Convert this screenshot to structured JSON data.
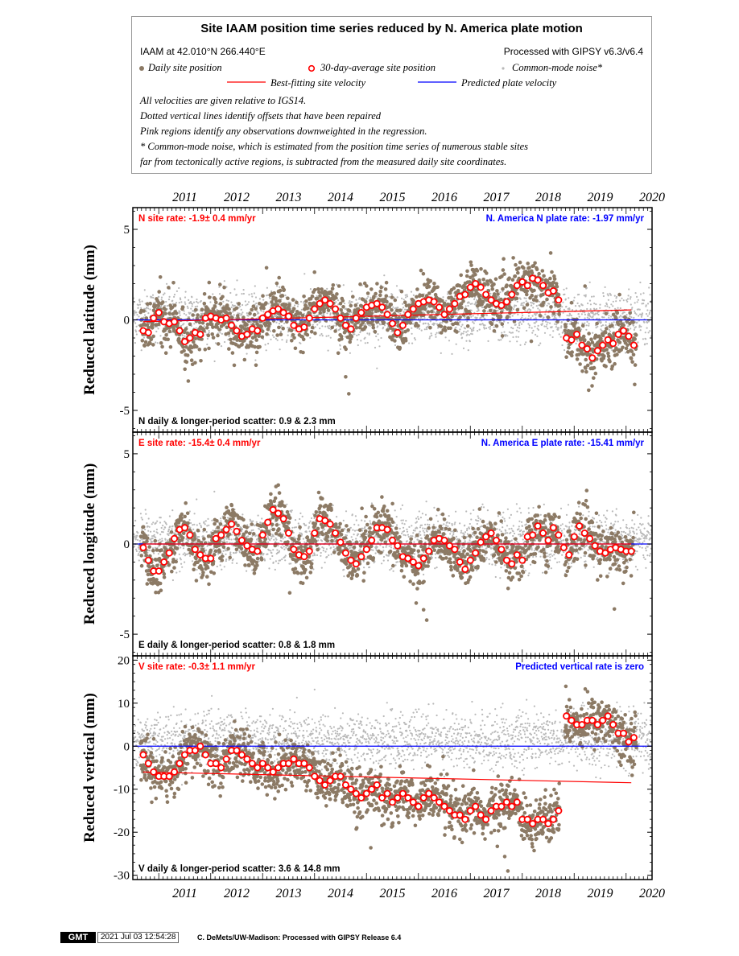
{
  "legend": {
    "title": "Site IAAM position time series reduced by N. America plate motion",
    "site_info": "IAAM at 42.010°N 266.440°E",
    "processing": "Processed with GIPSY v6.3/v6.4",
    "daily_label": "Daily site position",
    "avg_label": "30-day-average site position",
    "cm_label": "Common-mode noise*",
    "fit_label": "Best-fitting site velocity",
    "plate_label": "Predicted plate velocity",
    "notes": [
      "All velocities are given relative to IGS14.",
      "Dotted vertical lines identify offsets that have been repaired",
      "Pink regions identify any observations downweighted in the regression.",
      "* Common-mode noise, which is estimated from the position time series of numerous stable sites",
      "far from tectonically active regions, is subtracted from the measured daily site coordinates."
    ]
  },
  "colors": {
    "daily": "#8c7a65",
    "common_mode": "#b9b9b9",
    "fit": "#ff0000",
    "plate": "#0000ff",
    "avg_fill": "#ffffff",
    "avg_stroke": "#ff0000"
  },
  "chart_data": [
    {
      "type": "scatter",
      "component": "N",
      "ylabel": "Reduced latitude (mm)",
      "ylim": [
        -6.2,
        6.2
      ],
      "yticks": [
        -5,
        0,
        5
      ],
      "xlim": [
        2010.5,
        2020.5
      ],
      "years": [
        "2011",
        "2012",
        "2013",
        "2014",
        "2015",
        "2016",
        "2017",
        "2018",
        "2019",
        "2020"
      ],
      "site_rate": "N site rate:  -1.9± 0.4 mm/yr",
      "plate_rate": "N. America N plate rate: -1.97 mm/yr",
      "scatter_text": "N daily & longer-period scatter:   0.9 &   2.3 mm",
      "fit_line": {
        "x": [
          2010.7,
          2020.1
        ],
        "y": [
          -0.1,
          0.55
        ]
      },
      "plate_line_y": 0,
      "avg_series": {
        "x": [
          2010.7,
          2010.8,
          2010.9,
          2011.0,
          2011.1,
          2011.2,
          2011.3,
          2011.4,
          2011.5,
          2011.6,
          2011.7,
          2011.8,
          2011.9,
          2012.0,
          2012.1,
          2012.2,
          2012.3,
          2012.4,
          2012.5,
          2012.6,
          2012.7,
          2012.8,
          2012.9,
          2013.0,
          2013.1,
          2013.2,
          2013.3,
          2013.4,
          2013.5,
          2013.6,
          2013.7,
          2013.8,
          2013.9,
          2014.0,
          2014.1,
          2014.2,
          2014.3,
          2014.4,
          2014.5,
          2014.6,
          2014.7,
          2014.8,
          2014.9,
          2015.0,
          2015.1,
          2015.2,
          2015.3,
          2015.4,
          2015.5,
          2015.6,
          2015.7,
          2015.8,
          2015.9,
          2016.0,
          2016.1,
          2016.2,
          2016.3,
          2016.4,
          2016.5,
          2016.6,
          2016.7,
          2016.8,
          2016.9,
          2017.0,
          2017.1,
          2017.2,
          2017.3,
          2017.4,
          2017.5,
          2017.6,
          2017.7,
          2017.8,
          2017.9,
          2018.0,
          2018.1,
          2018.2,
          2018.3,
          2018.4,
          2018.5,
          2018.6,
          2018.7,
          2018.85,
          2018.95,
          2019.05,
          2019.15,
          2019.25,
          2019.35,
          2019.45,
          2019.55,
          2019.65,
          2019.75,
          2019.85,
          2019.95,
          2020.05,
          2020.15
        ],
        "y": [
          -0.6,
          -0.7,
          0.1,
          0.4,
          -0.1,
          -0.2,
          -0.1,
          -0.6,
          -1.2,
          -1.0,
          -0.7,
          -0.8,
          0.1,
          0.2,
          0.1,
          0.0,
          0.1,
          -0.3,
          -0.6,
          -0.9,
          -0.8,
          -0.5,
          -0.6,
          0.1,
          0.3,
          0.5,
          0.6,
          0.4,
          0.2,
          -0.3,
          -0.5,
          -0.4,
          0.1,
          0.6,
          0.9,
          1.1,
          0.9,
          0.6,
          0.1,
          -0.3,
          -0.5,
          0.1,
          0.4,
          0.7,
          0.8,
          0.9,
          0.7,
          0.3,
          -0.2,
          -0.7,
          -0.3,
          0.3,
          0.6,
          0.9,
          1.0,
          1.1,
          1.0,
          0.7,
          0.3,
          0.6,
          0.9,
          1.3,
          1.4,
          1.8,
          2.0,
          1.8,
          1.4,
          1.1,
          0.9,
          0.8,
          1.0,
          1.4,
          1.9,
          2.1,
          1.9,
          2.3,
          2.2,
          1.9,
          1.5,
          1.6,
          1.1,
          -1.0,
          -1.1,
          -0.8,
          -1.4,
          -1.6,
          -2.1,
          -1.7,
          -1.4,
          -1.1,
          -1.3,
          -0.8,
          -0.6,
          -0.9,
          -1.4
        ]
      }
    },
    {
      "type": "scatter",
      "component": "E",
      "ylabel": "Reduced longitude (mm)",
      "ylim": [
        -6.2,
        6.2
      ],
      "yticks": [
        -5,
        0,
        5
      ],
      "xlim": [
        2010.5,
        2020.5
      ],
      "years": [
        "2011",
        "2012",
        "2013",
        "2014",
        "2015",
        "2016",
        "2017",
        "2018",
        "2019",
        "2020"
      ],
      "site_rate": "E site rate:  -15.4± 0.4 mm/yr",
      "plate_rate": "N. America E plate rate: -15.41 mm/yr",
      "scatter_text": "E daily & longer-period scatter:   0.8 &   1.8 mm",
      "fit_line": {
        "x": [
          2010.7,
          2020.1
        ],
        "y": [
          0.0,
          0.0
        ]
      },
      "plate_line_y": 0,
      "avg_series": {
        "x": [
          2010.7,
          2010.8,
          2010.9,
          2011.0,
          2011.1,
          2011.2,
          2011.3,
          2011.4,
          2011.5,
          2011.6,
          2011.7,
          2011.8,
          2011.9,
          2012.0,
          2012.1,
          2012.2,
          2012.3,
          2012.4,
          2012.5,
          2012.6,
          2012.7,
          2012.8,
          2012.9,
          2013.0,
          2013.1,
          2013.2,
          2013.3,
          2013.4,
          2013.5,
          2013.6,
          2013.7,
          2013.8,
          2013.9,
          2014.0,
          2014.1,
          2014.2,
          2014.3,
          2014.4,
          2014.5,
          2014.6,
          2014.7,
          2014.8,
          2014.9,
          2015.0,
          2015.1,
          2015.2,
          2015.3,
          2015.4,
          2015.5,
          2015.6,
          2015.7,
          2015.8,
          2015.9,
          2016.0,
          2016.1,
          2016.2,
          2016.3,
          2016.4,
          2016.5,
          2016.6,
          2016.7,
          2016.8,
          2016.9,
          2017.0,
          2017.1,
          2017.2,
          2017.3,
          2017.4,
          2017.5,
          2017.6,
          2017.7,
          2017.8,
          2017.9,
          2018.0,
          2018.1,
          2018.2,
          2018.3,
          2018.4,
          2018.5,
          2018.6,
          2018.7,
          2018.8,
          2018.9,
          2019.0,
          2019.1,
          2019.2,
          2019.3,
          2019.4,
          2019.5,
          2019.6,
          2019.7,
          2019.8,
          2019.9,
          2020.0,
          2020.1
        ],
        "y": [
          -0.2,
          -0.9,
          -1.5,
          -1.5,
          -1.0,
          -0.5,
          0.3,
          0.8,
          0.9,
          0.5,
          -0.3,
          -0.6,
          -0.8,
          -0.8,
          0.3,
          0.5,
          0.8,
          1.1,
          0.7,
          0.2,
          -0.1,
          -0.3,
          -0.4,
          0.5,
          1.2,
          1.9,
          1.7,
          1.4,
          0.6,
          -0.3,
          -0.6,
          -0.7,
          -0.4,
          0.6,
          1.4,
          1.3,
          1.1,
          0.6,
          0.1,
          -0.5,
          -0.9,
          -1.1,
          -0.7,
          -0.3,
          0.2,
          0.9,
          0.9,
          0.8,
          0.2,
          -0.1,
          -0.7,
          -0.8,
          -1.0,
          -1.2,
          -0.8,
          -0.4,
          0.2,
          0.3,
          0.2,
          -0.1,
          -0.3,
          -1.0,
          -1.4,
          -0.9,
          -0.5,
          0.1,
          0.4,
          0.6,
          0.2,
          -0.3,
          -0.9,
          -1.1,
          -0.6,
          -0.9,
          0.4,
          0.5,
          1.0,
          0.6,
          0.2,
          0.9,
          0.5,
          -0.2,
          -0.6,
          0.4,
          1.0,
          0.6,
          0.3,
          -0.1,
          -0.4,
          -0.5,
          -0.3,
          -0.2,
          -0.3,
          -0.4,
          -0.4
        ]
      }
    },
    {
      "type": "scatter",
      "component": "V",
      "ylabel": "Reduced vertical (mm)",
      "ylim": [
        -31,
        21
      ],
      "yticks": [
        -30,
        -20,
        -10,
        0,
        10,
        20
      ],
      "xlim": [
        2010.5,
        2020.5
      ],
      "years": [
        "2011",
        "2012",
        "2013",
        "2014",
        "2015",
        "2016",
        "2017",
        "2018",
        "2019",
        "2020"
      ],
      "site_rate": "V site rate:  -0.3± 1.1 mm/yr",
      "plate_rate": "Predicted vertical rate is zero",
      "scatter_text": "V daily & longer-period scatter:   3.6 &  14.8 mm",
      "fit_line": {
        "x": [
          2010.7,
          2020.1
        ],
        "y": [
          -6.0,
          -8.5
        ]
      },
      "plate_line_y": 0,
      "avg_series": {
        "x": [
          2010.7,
          2010.8,
          2010.9,
          2011.0,
          2011.1,
          2011.2,
          2011.3,
          2011.4,
          2011.5,
          2011.6,
          2011.7,
          2011.8,
          2011.9,
          2012.0,
          2012.1,
          2012.2,
          2012.3,
          2012.4,
          2012.5,
          2012.6,
          2012.7,
          2012.8,
          2012.9,
          2013.0,
          2013.1,
          2013.2,
          2013.3,
          2013.4,
          2013.5,
          2013.6,
          2013.7,
          2013.8,
          2013.9,
          2014.0,
          2014.1,
          2014.2,
          2014.3,
          2014.4,
          2014.5,
          2014.6,
          2014.7,
          2014.8,
          2014.9,
          2015.0,
          2015.1,
          2015.2,
          2015.3,
          2015.4,
          2015.5,
          2015.6,
          2015.7,
          2015.8,
          2015.9,
          2016.0,
          2016.1,
          2016.2,
          2016.3,
          2016.4,
          2016.5,
          2016.6,
          2016.7,
          2016.8,
          2016.9,
          2017.0,
          2017.1,
          2017.2,
          2017.3,
          2017.4,
          2017.5,
          2017.6,
          2017.7,
          2017.8,
          2017.9,
          2018.0,
          2018.1,
          2018.2,
          2018.3,
          2018.4,
          2018.5,
          2018.6,
          2018.7,
          2018.85,
          2018.95,
          2019.05,
          2019.15,
          2019.25,
          2019.35,
          2019.45,
          2019.55,
          2019.65,
          2019.75,
          2019.85,
          2019.95,
          2020.05,
          2020.15
        ],
        "y": [
          -2,
          -4,
          -6,
          -7,
          -7,
          -7,
          -6,
          -4,
          -2,
          -1,
          -1,
          0,
          -2,
          -4,
          -4,
          -5,
          -3,
          -1,
          -1,
          -2,
          -3,
          -4,
          -5,
          -4,
          -5,
          -6,
          -5,
          -4,
          -4,
          -3,
          -4,
          -4,
          -5,
          -7,
          -8,
          -9,
          -8,
          -7,
          -7,
          -9,
          -10,
          -11,
          -12,
          -11,
          -10,
          -9,
          -12,
          -11,
          -13,
          -12,
          -11,
          -12,
          -13,
          -14,
          -12,
          -11,
          -12,
          -13,
          -14,
          -15,
          -16,
          -16,
          -17,
          -15,
          -14,
          -16,
          -17,
          -15,
          -14,
          -14,
          -13,
          -14,
          -13,
          -17,
          -17,
          -18,
          -17,
          -17,
          -18,
          -17,
          -15,
          7,
          6,
          5,
          5,
          6,
          6,
          5,
          6,
          7,
          5,
          3,
          3,
          1,
          2
        ]
      }
    }
  ],
  "footer": {
    "logo": "GMT",
    "timestamp": "2021 Jul 03 12:54:28",
    "credit": "C. DeMets/UW-Madison: Processed with GIPSY Release 6.4"
  }
}
